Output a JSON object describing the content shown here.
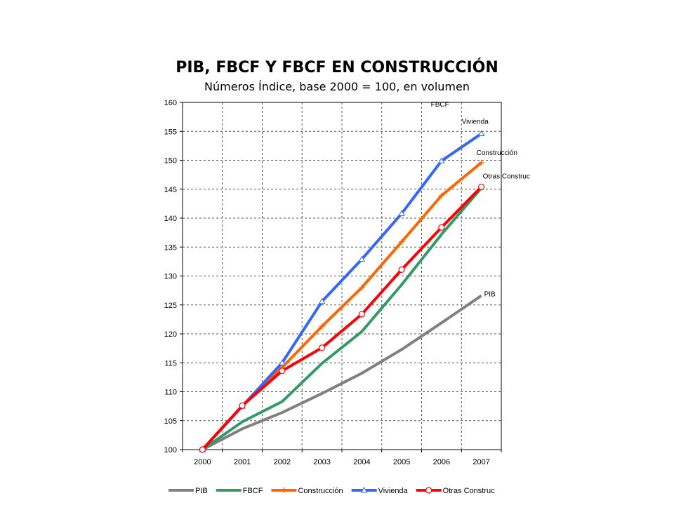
{
  "chart_data": {
    "type": "line",
    "title": "PIB, FBCF Y FBCF EN CONSTRUCCIÓN",
    "subtitle": "Números Índice, base 2000 = 100, en volumen",
    "categories": [
      "2000",
      "2001",
      "2002",
      "2003",
      "2004",
      "2005",
      "2006",
      "2007"
    ],
    "ylim": [
      100,
      160
    ],
    "yticks": [
      100,
      105,
      110,
      115,
      120,
      125,
      130,
      135,
      140,
      145,
      150,
      155,
      160
    ],
    "grid": true,
    "legend_position": "bottom",
    "series": [
      {
        "name": "PIB",
        "color": "#808080",
        "marker": "none",
        "values": [
          100,
          103.6,
          106.4,
          109.7,
          113.2,
          117.3,
          121.9,
          126.6
        ]
      },
      {
        "name": "FBCF",
        "color": "#339966",
        "marker": "none",
        "values": [
          100,
          104.8,
          108.3,
          114.9,
          120.4,
          128.5,
          137.2,
          145.2
        ]
      },
      {
        "name": "Construcción",
        "color": "#FF6600",
        "marker": "plus",
        "values": [
          100,
          107.5,
          114.2,
          121.3,
          128.0,
          135.9,
          143.9,
          149.6
        ]
      },
      {
        "name": "Vivienda",
        "color": "#3366FF",
        "marker": "triangle",
        "values": [
          100,
          107.5,
          115.0,
          125.6,
          132.9,
          140.8,
          149.9,
          154.6
        ]
      },
      {
        "name": "Otras Construc",
        "color": "#FF0000",
        "marker": "circle",
        "values": [
          100,
          107.6,
          113.6,
          117.6,
          123.4,
          131.1,
          138.4,
          145.4
        ]
      }
    ],
    "annotations": [
      {
        "text": "Vivienda",
        "series": "Vivienda"
      },
      {
        "text": "Construcción",
        "series": "Construcción"
      },
      {
        "text": "Otras Construc",
        "series": "Otras Construc"
      },
      {
        "text": "FBCF",
        "series": "FBCF"
      },
      {
        "text": "PIB",
        "series": "PIB"
      }
    ]
  }
}
